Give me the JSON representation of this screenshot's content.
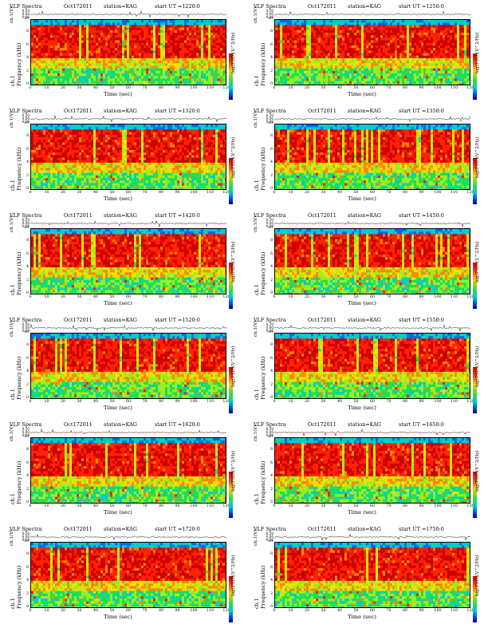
{
  "chart_data": [
    {
      "type": "heatmap",
      "panel": {
        "title_left": "VLF Spectra",
        "date": "Oct172011",
        "station": "station=KAG",
        "start": "start  UT  =1220:0",
        "wave_label": "ch.1(V)",
        "wave_ticks": [
          "0.20",
          "0.00",
          "0.20"
        ],
        "ch_label": "ch.1",
        "ylabel": "Frequency  (kHz)",
        "yticks": [
          "10",
          "8",
          "6",
          "4",
          "2",
          "0"
        ],
        "xlabel": "Time  (sec)",
        "xticks": [
          "0",
          "10",
          "20",
          "30",
          "40",
          "50",
          "60",
          "70",
          "80",
          "90",
          "100",
          "110",
          "120"
        ],
        "colorbar_label": "log(PSD)(V^2/Hz)",
        "seed": 11
      },
      "xlim": [
        0,
        120
      ],
      "ylim": [
        0,
        10
      ]
    },
    {
      "type": "heatmap",
      "panel": {
        "title_left": "VLF Spectra",
        "date": "Oct172011",
        "station": "station=KAG",
        "start": "start  UT  =1250:0",
        "wave_label": "ch.1(V)",
        "wave_ticks": [
          "0.20",
          "0.00",
          "0.20"
        ],
        "ch_label": "ch.1",
        "ylabel": "Frequency  (kHz)",
        "yticks": [
          "10",
          "8",
          "6",
          "4",
          "2",
          "0"
        ],
        "xlabel": "Time  (sec)",
        "xticks": [
          "0",
          "10",
          "20",
          "30",
          "40",
          "50",
          "60",
          "70",
          "80",
          "90",
          "100",
          "110",
          "120"
        ],
        "colorbar_label": "log(PSD)(V^2/Hz)",
        "seed": 23
      },
      "xlim": [
        0,
        120
      ],
      "ylim": [
        0,
        10
      ]
    },
    {
      "type": "heatmap",
      "panel": {
        "title_left": "VLF Spectra",
        "date": "Oct172011",
        "station": "station=KAG",
        "start": "start  UT  =1320:0",
        "wave_label": "ch.1(V)",
        "wave_ticks": [
          "0.20",
          "0.00",
          "0.20"
        ],
        "ch_label": "ch.1",
        "ylabel": "Frequency  (kHz)",
        "yticks": [
          "10",
          "8",
          "6",
          "4",
          "2",
          "0"
        ],
        "xlabel": "Time  (sec)",
        "xticks": [
          "0",
          "10",
          "20",
          "30",
          "40",
          "50",
          "60",
          "70",
          "80",
          "90",
          "100",
          "110",
          "120"
        ],
        "colorbar_label": "log(PSD)(V^2/Hz)",
        "seed": 37
      },
      "xlim": [
        0,
        120
      ],
      "ylim": [
        0,
        10
      ]
    },
    {
      "type": "heatmap",
      "panel": {
        "title_left": "VLF Spectra",
        "date": "Oct172011",
        "station": "station=KAG",
        "start": "start  UT  =1350:0",
        "wave_label": "ch.1(V)",
        "wave_ticks": [
          "0.20",
          "0.00",
          "0.20"
        ],
        "ch_label": "ch.1",
        "ylabel": "Frequency  (kHz)",
        "yticks": [
          "10",
          "8",
          "6",
          "4",
          "2",
          "0"
        ],
        "xlabel": "Time  (sec)",
        "xticks": [
          "0",
          "10",
          "20",
          "30",
          "40",
          "50",
          "60",
          "70",
          "80",
          "90",
          "100",
          "110",
          "120"
        ],
        "colorbar_label": "log(PSD)(V^2/Hz)",
        "seed": 41
      },
      "xlim": [
        0,
        120
      ],
      "ylim": [
        0,
        10
      ]
    },
    {
      "type": "heatmap",
      "panel": {
        "title_left": "VLF Spectra",
        "date": "Oct172011",
        "station": "station=KAG",
        "start": "start  UT  =1420:0",
        "wave_label": "ch.1(V)",
        "wave_ticks": [
          "0.20",
          "0.00",
          "0.20"
        ],
        "ch_label": "ch.1",
        "ylabel": "Frequency  (kHz)",
        "yticks": [
          "10",
          "8",
          "6",
          "4",
          "2",
          "0"
        ],
        "xlabel": "Time  (sec)",
        "xticks": [
          "0",
          "10",
          "20",
          "30",
          "40",
          "50",
          "60",
          "70",
          "80",
          "90",
          "100",
          "110",
          "120"
        ],
        "colorbar_label": "log(PSD)(V^2/Hz)",
        "seed": 53
      },
      "xlim": [
        0,
        120
      ],
      "ylim": [
        0,
        10
      ]
    },
    {
      "type": "heatmap",
      "panel": {
        "title_left": "VLF Spectra",
        "date": "Oct172011",
        "station": "station=KAG",
        "start": "start  UT  =1450:0",
        "wave_label": "ch.1(V)",
        "wave_ticks": [
          "0.20",
          "0.00",
          "0.20"
        ],
        "ch_label": "ch.1",
        "ylabel": "Frequency  (kHz)",
        "yticks": [
          "10",
          "8",
          "6",
          "4",
          "2",
          "0"
        ],
        "xlabel": "Time  (sec)",
        "xticks": [
          "0",
          "10",
          "20",
          "30",
          "40",
          "50",
          "60",
          "70",
          "80",
          "90",
          "100",
          "110",
          "120"
        ],
        "colorbar_label": "log(PSD)(V^2/Hz)",
        "seed": 67
      },
      "xlim": [
        0,
        120
      ],
      "ylim": [
        0,
        10
      ]
    },
    {
      "type": "heatmap",
      "panel": {
        "title_left": "VLF Spectra",
        "date": "Oct172011",
        "station": "station=KAG",
        "start": "start  UT  =1520:0",
        "wave_label": "ch.1(V)",
        "wave_ticks": [
          "0.20",
          "0.00",
          "0.20"
        ],
        "ch_label": "ch.1",
        "ylabel": "Frequency  (kHz)",
        "yticks": [
          "10",
          "8",
          "6",
          "4",
          "2",
          "0"
        ],
        "xlabel": "Time  (sec)",
        "xticks": [
          "0",
          "10",
          "20",
          "30",
          "40",
          "50",
          "60",
          "70",
          "80",
          "90",
          "100",
          "110",
          "120"
        ],
        "colorbar_label": "log(PSD)(V^2/Hz)",
        "seed": 71
      },
      "xlim": [
        0,
        120
      ],
      "ylim": [
        0,
        10
      ]
    },
    {
      "type": "heatmap",
      "panel": {
        "title_left": "VLF Spectra",
        "date": "Oct172011",
        "station": "station=KAG",
        "start": "start  UT  =1550:0",
        "wave_label": "ch.1(V)",
        "wave_ticks": [
          "0.20",
          "0.00",
          "0.20"
        ],
        "ch_label": "ch.1",
        "ylabel": "Frequency  (kHz)",
        "yticks": [
          "10",
          "8",
          "6",
          "4",
          "2",
          "0"
        ],
        "xlabel": "Time  (sec)",
        "xticks": [
          "0",
          "10",
          "20",
          "30",
          "40",
          "50",
          "60",
          "70",
          "80",
          "90",
          "100",
          "110",
          "120"
        ],
        "colorbar_label": "log(PSD)(V^2/Hz)",
        "seed": 83
      },
      "xlim": [
        0,
        120
      ],
      "ylim": [
        0,
        10
      ]
    },
    {
      "type": "heatmap",
      "panel": {
        "title_left": "VLF Spectra",
        "date": "Oct172011",
        "station": "station=KAG",
        "start": "start  UT  =1620:0",
        "wave_label": "ch.1(V)",
        "wave_ticks": [
          "0.20",
          "0.00",
          "0.20"
        ],
        "ch_label": "ch.1",
        "ylabel": "Frequency  (kHz)",
        "yticks": [
          "10",
          "8",
          "6",
          "4",
          "2",
          "0"
        ],
        "xlabel": "Time  (sec)",
        "xticks": [
          "0",
          "10",
          "20",
          "30",
          "40",
          "50",
          "60",
          "70",
          "80",
          "90",
          "100",
          "110",
          "120"
        ],
        "colorbar_label": "log(PSD)(V^2/Hz)",
        "seed": 97
      },
      "xlim": [
        0,
        120
      ],
      "ylim": [
        0,
        10
      ]
    },
    {
      "type": "heatmap",
      "panel": {
        "title_left": "VLF Spectra",
        "date": "Oct172011",
        "station": "station=KAG",
        "start": "start  UT  =1650:0",
        "wave_label": "ch.1(V)",
        "wave_ticks": [
          "0.20",
          "0.00",
          "0.20"
        ],
        "ch_label": "ch.1",
        "ylabel": "Frequency  (kHz)",
        "yticks": [
          "10",
          "8",
          "6",
          "4",
          "2",
          "0"
        ],
        "xlabel": "Time  (sec)",
        "xticks": [
          "0",
          "10",
          "20",
          "30",
          "40",
          "50",
          "60",
          "70",
          "80",
          "90",
          "100",
          "110",
          "120"
        ],
        "colorbar_label": "log(PSD)(V^2/Hz)",
        "seed": 101
      },
      "xlim": [
        0,
        120
      ],
      "ylim": [
        0,
        10
      ]
    },
    {
      "type": "heatmap",
      "panel": {
        "title_left": "VLF Spectra",
        "date": "Oct172011",
        "station": "station=KAG",
        "start": "start  UT  =1720:0",
        "wave_label": "ch.1(V)",
        "wave_ticks": [
          "0.20",
          "0.00",
          "0.20"
        ],
        "ch_label": "ch.1",
        "ylabel": "Frequency  (kHz)",
        "yticks": [
          "10",
          "8",
          "6",
          "4",
          "2",
          "0"
        ],
        "xlabel": "Time  (sec)",
        "xticks": [
          "0",
          "10",
          "20",
          "30",
          "40",
          "50",
          "60",
          "70",
          "80",
          "90",
          "100",
          "110",
          "120"
        ],
        "colorbar_label": "log(PSD)(V^2/Hz)",
        "seed": 113
      },
      "xlim": [
        0,
        120
      ],
      "ylim": [
        0,
        10
      ]
    },
    {
      "type": "heatmap",
      "panel": {
        "title_left": "VLF Spectra",
        "date": "Oct172011",
        "station": "station=KAG",
        "start": "start  UT  =1750:0",
        "wave_label": "ch.1(V)",
        "wave_ticks": [
          "0.20",
          "0.00",
          "0.20"
        ],
        "ch_label": "ch.1",
        "ylabel": "Frequency  (kHz)",
        "yticks": [
          "10",
          "8",
          "6",
          "4",
          "2",
          "0"
        ],
        "xlabel": "Time  (sec)",
        "xticks": [
          "0",
          "10",
          "20",
          "30",
          "40",
          "50",
          "60",
          "70",
          "80",
          "90",
          "100",
          "110",
          "120"
        ],
        "colorbar_label": "log(PSD)(V^2/Hz)",
        "seed": 127
      },
      "xlim": [
        0,
        120
      ],
      "ylim": [
        0,
        10
      ]
    }
  ],
  "palette": [
    "#cc0000",
    "#ff2200",
    "#ff8800",
    "#ffdd00",
    "#99ee22",
    "#22dd55",
    "#00cccc",
    "#0066ee"
  ]
}
